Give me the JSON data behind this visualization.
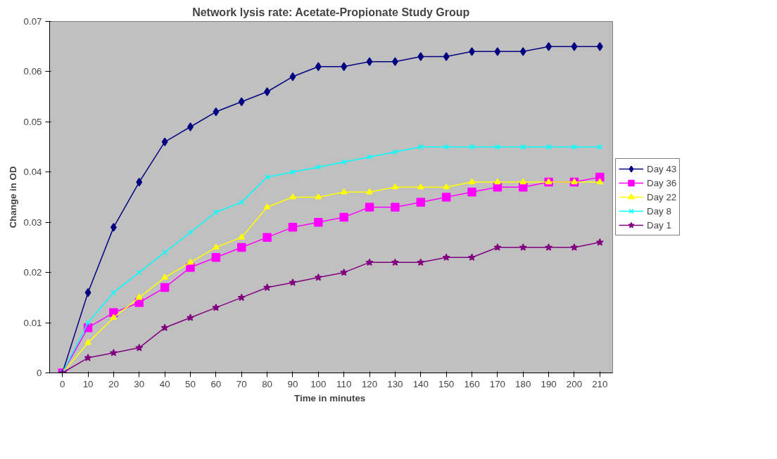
{
  "chart_data": {
    "type": "line",
    "title": "Network lysis rate: Acetate-Propionate Study Group",
    "xlabel": "Time in  minutes",
    "ylabel": "Change in OD",
    "categories": [
      "0",
      "10",
      "20",
      "30",
      "40",
      "50",
      "60",
      "70",
      "80",
      "90",
      "100",
      "110",
      "120",
      "130",
      "140",
      "150",
      "160",
      "170",
      "180",
      "190",
      "200",
      "210"
    ],
    "ylim": [
      0,
      0.07
    ],
    "yticks": [
      0,
      0.01,
      0.02,
      0.03,
      0.04,
      0.05,
      0.06,
      0.07
    ],
    "grid": false,
    "legend": "right",
    "series": [
      {
        "name": "Day 43",
        "color": "#000080",
        "marker": "diamond",
        "values": [
          0,
          0.016,
          0.029,
          0.038,
          0.046,
          0.049,
          0.052,
          0.054,
          0.056,
          0.059,
          0.061,
          0.061,
          0.062,
          0.062,
          0.063,
          0.063,
          0.064,
          0.064,
          0.064,
          0.065,
          0.065,
          0.065
        ]
      },
      {
        "name": "Day 36",
        "color": "#ff00ff",
        "marker": "square",
        "values": [
          0,
          0.009,
          0.012,
          0.014,
          0.017,
          0.021,
          0.023,
          0.025,
          0.027,
          0.029,
          0.03,
          0.031,
          0.033,
          0.033,
          0.034,
          0.035,
          0.036,
          0.037,
          0.037,
          0.038,
          0.038,
          0.039
        ]
      },
      {
        "name": "Day 22",
        "color": "#ffff00",
        "marker": "triangle",
        "values": [
          0,
          0.006,
          0.011,
          0.015,
          0.019,
          0.022,
          0.025,
          0.027,
          0.033,
          0.035,
          0.035,
          0.036,
          0.036,
          0.037,
          0.037,
          0.037,
          0.038,
          0.038,
          0.038,
          0.038,
          0.038,
          0.038
        ]
      },
      {
        "name": "Day 8",
        "color": "#00ffff",
        "marker": "cross",
        "values": [
          0,
          0.01,
          0.016,
          0.02,
          0.024,
          0.028,
          0.032,
          0.034,
          0.039,
          0.04,
          0.041,
          0.042,
          0.043,
          0.044,
          0.045,
          0.045,
          0.045,
          0.045,
          0.045,
          0.045,
          0.045,
          0.045
        ]
      },
      {
        "name": "Day 1",
        "color": "#800080",
        "marker": "star",
        "values": [
          0,
          0.003,
          0.004,
          0.005,
          0.009,
          0.011,
          0.013,
          0.015,
          0.017,
          0.018,
          0.019,
          0.02,
          0.022,
          0.022,
          0.022,
          0.023,
          0.023,
          0.025,
          0.025,
          0.025,
          0.025,
          0.026
        ]
      }
    ]
  }
}
